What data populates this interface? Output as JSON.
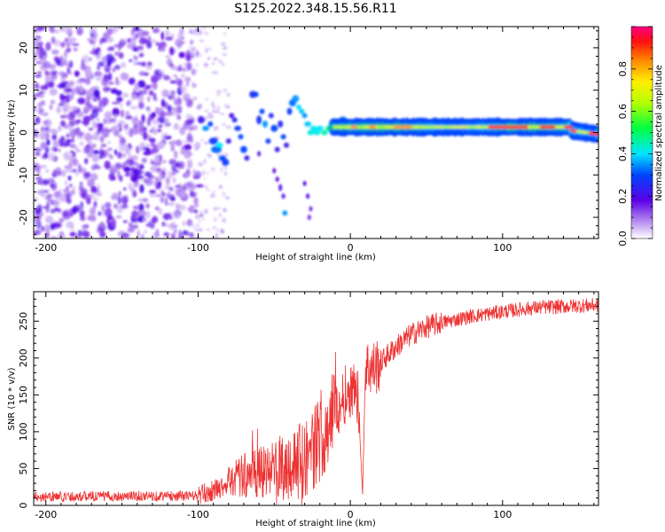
{
  "title": "S125.2022.348.15.56.R11",
  "chart_data": [
    {
      "type": "heatmap",
      "name": "spectrogram",
      "xlabel": "Height of straight line (km)",
      "ylabel": "Frequency (Hz)",
      "xlim": [
        -208,
        163
      ],
      "ylim": [
        -25,
        25
      ],
      "x_ticks": [
        -200,
        -100,
        0,
        100
      ],
      "y_ticks": [
        -20,
        -10,
        0,
        10,
        20
      ],
      "colorbar": {
        "label": "Normalized spectral amplitude",
        "range": [
          0,
          1
        ],
        "ticks": [
          0.0,
          0.2,
          0.4,
          0.6,
          0.8
        ]
      }
    },
    {
      "type": "line",
      "name": "snr",
      "xlabel": "Height of straight line (km)",
      "ylabel": "SNR (10 * v/v)",
      "xlim": [
        -208,
        163
      ],
      "ylim": [
        0,
        290
      ],
      "x_ticks": [
        -200,
        -100,
        0,
        100
      ],
      "y_ticks": [
        0,
        50,
        100,
        150,
        200,
        250
      ],
      "color": "#ee3333",
      "series_profile": {
        "x": [
          -208,
          -100,
          -90,
          -80,
          -70,
          -60,
          -50,
          -40,
          -30,
          -20,
          -10,
          0,
          5,
          8,
          10,
          15,
          20,
          30,
          40,
          50,
          60,
          80,
          100,
          120,
          140,
          163
        ],
        "y": [
          12,
          13,
          20,
          30,
          40,
          45,
          50,
          55,
          62,
          90,
          130,
          160,
          150,
          15,
          190,
          185,
          195,
          215,
          232,
          242,
          248,
          257,
          263,
          268,
          270,
          272
        ]
      }
    }
  ]
}
